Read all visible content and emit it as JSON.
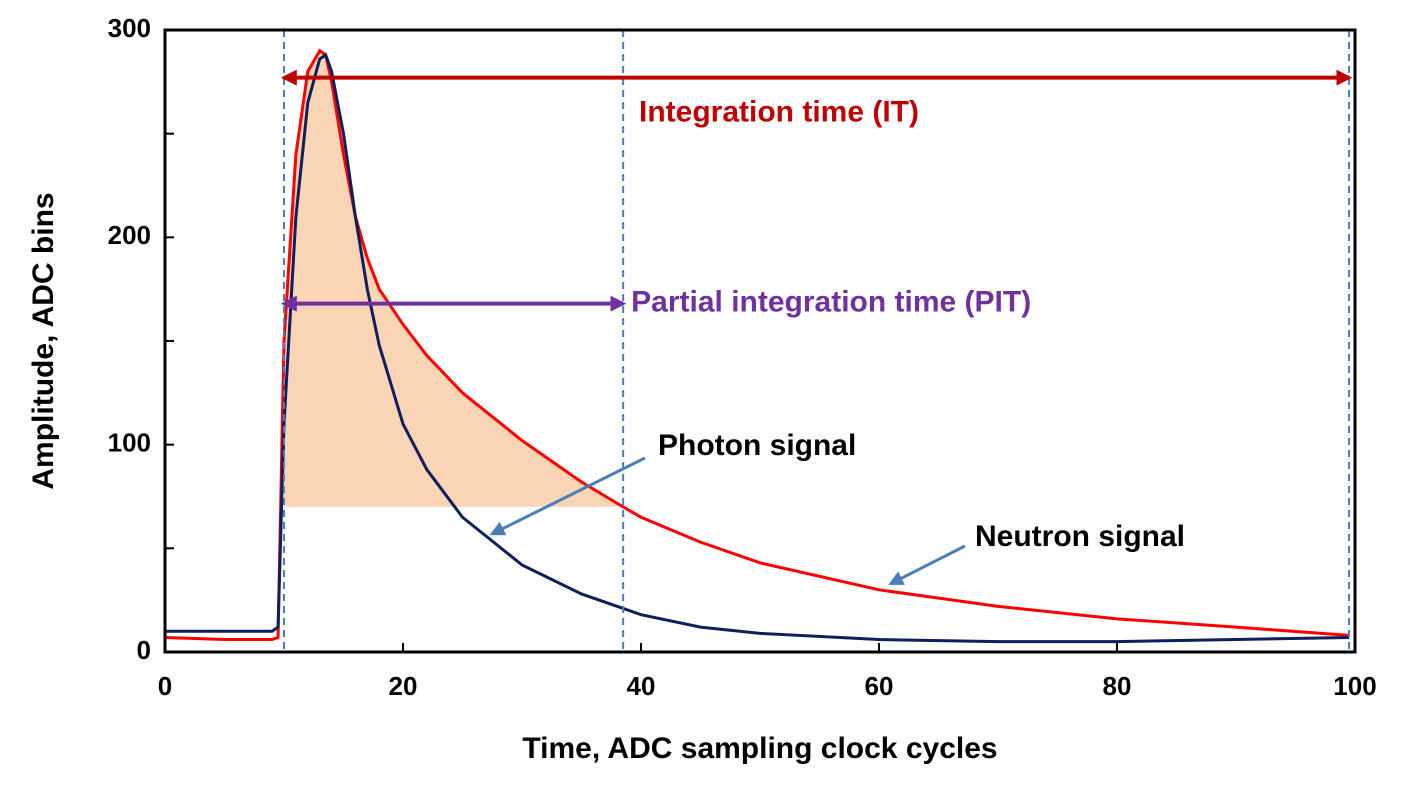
{
  "chart_data": {
    "type": "line",
    "x_label": "Time, ADC sampling clock cycles",
    "y_label": "Amplitude, ADC bins",
    "xlim": [
      0,
      100
    ],
    "ylim": [
      0,
      300
    ],
    "xticks": [
      0,
      20,
      40,
      60,
      80,
      100
    ],
    "yticks": [
      0,
      100,
      200,
      300
    ],
    "yminorticks": [
      50,
      150,
      250
    ],
    "x": [
      0,
      5,
      9,
      9.5,
      10,
      11,
      12,
      13,
      13.5,
      14,
      15,
      16,
      17,
      18,
      20,
      22,
      25,
      30,
      35,
      38.5,
      40,
      45,
      50,
      60,
      70,
      80,
      90,
      99.5
    ],
    "series": [
      {
        "name": "Neutron signal",
        "color": "#ff0000",
        "arrow_to": [
          61,
          33
        ],
        "values": [
          7,
          6,
          6,
          7,
          150,
          240,
          280,
          290,
          288,
          275,
          240,
          210,
          190,
          175,
          158,
          143,
          125,
          102,
          82,
          70,
          65,
          53,
          43,
          30,
          22,
          16,
          12,
          8
        ]
      },
      {
        "name": "Photon signal",
        "color": "#0d1f5c",
        "arrow_to": [
          27.5,
          57
        ],
        "values": [
          10,
          10,
          10,
          12,
          110,
          210,
          265,
          286,
          288,
          280,
          250,
          210,
          175,
          148,
          110,
          88,
          65,
          42,
          28,
          21,
          18,
          12,
          9,
          6,
          5,
          5,
          6,
          7
        ]
      }
    ],
    "shade_color": "#fad5b5",
    "annotations": [
      {
        "text": "Integration time (IT)",
        "color": "#c00000",
        "x_range": [
          10,
          99.5
        ],
        "y": 277
      },
      {
        "text": "Partial integration time (PIT)",
        "color": "#7030a0",
        "x_range": [
          10,
          38.5
        ],
        "y": 168
      }
    ]
  }
}
